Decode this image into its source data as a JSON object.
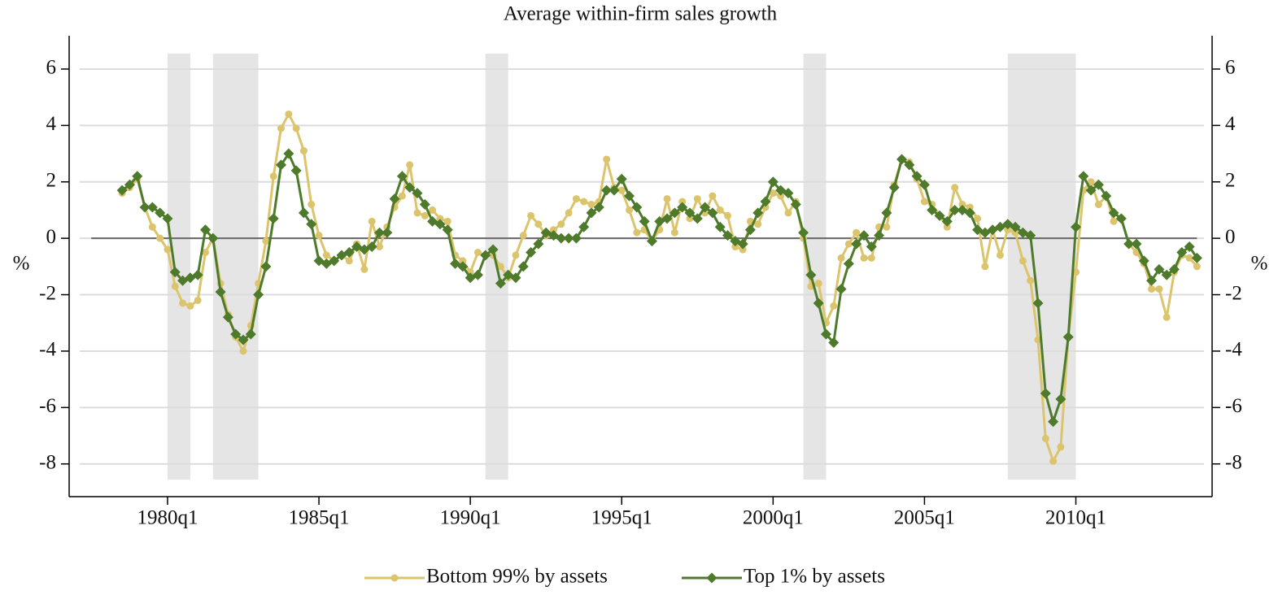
{
  "chart_data": {
    "type": "line",
    "title": "Average within-firm sales growth",
    "y_label": "%",
    "x": [
      "1978q3",
      "1978q4",
      "1979q1",
      "1979q2",
      "1979q3",
      "1979q4",
      "1980q1",
      "1980q2",
      "1980q3",
      "1980q4",
      "1981q1",
      "1981q2",
      "1981q3",
      "1981q4",
      "1982q1",
      "1982q2",
      "1982q3",
      "1982q4",
      "1983q1",
      "1983q2",
      "1983q3",
      "1983q4",
      "1984q1",
      "1984q2",
      "1984q3",
      "1984q4",
      "1985q1",
      "1985q2",
      "1985q3",
      "1985q4",
      "1986q1",
      "1986q2",
      "1986q3",
      "1986q4",
      "1987q1",
      "1987q2",
      "1987q3",
      "1987q4",
      "1988q1",
      "1988q2",
      "1988q3",
      "1988q4",
      "1989q1",
      "1989q2",
      "1989q3",
      "1989q4",
      "1990q1",
      "1990q2",
      "1990q3",
      "1990q4",
      "1991q1",
      "1991q2",
      "1991q3",
      "1991q4",
      "1992q1",
      "1992q2",
      "1992q3",
      "1992q4",
      "1993q1",
      "1993q2",
      "1993q3",
      "1993q4",
      "1994q1",
      "1994q2",
      "1994q3",
      "1994q4",
      "1995q1",
      "1995q2",
      "1995q3",
      "1995q4",
      "1996q1",
      "1996q2",
      "1996q3",
      "1996q4",
      "1997q1",
      "1997q2",
      "1997q3",
      "1997q4",
      "1998q1",
      "1998q2",
      "1998q3",
      "1998q4",
      "1999q1",
      "1999q2",
      "1999q3",
      "1999q4",
      "2000q1",
      "2000q2",
      "2000q3",
      "2000q4",
      "2001q1",
      "2001q2",
      "2001q3",
      "2001q4",
      "2002q1",
      "2002q2",
      "2002q3",
      "2002q4",
      "2003q1",
      "2003q2",
      "2003q3",
      "2003q4",
      "2004q1",
      "2004q2",
      "2004q3",
      "2004q4",
      "2005q1",
      "2005q2",
      "2005q3",
      "2005q4",
      "2006q1",
      "2006q2",
      "2006q3",
      "2006q4",
      "2007q1",
      "2007q2",
      "2007q3",
      "2007q4",
      "2008q1",
      "2008q2",
      "2008q3",
      "2008q4",
      "2009q1",
      "2009q2",
      "2009q3",
      "2009q4",
      "2010q1",
      "2010q2",
      "2010q3",
      "2010q4",
      "2011q1",
      "2011q2",
      "2011q3",
      "2011q4",
      "2012q1",
      "2012q2",
      "2012q3",
      "2012q4",
      "2013q1",
      "2013q2",
      "2013q3",
      "2013q4",
      "2014q1"
    ],
    "series": [
      {
        "name": "Bottom 99% by assets",
        "color": "#dcc46c",
        "marker": "circle",
        "values": [
          1.6,
          1.8,
          2.1,
          1.1,
          0.4,
          0.0,
          -0.4,
          -1.7,
          -2.3,
          -2.4,
          -2.2,
          -0.5,
          0.0,
          -1.6,
          -2.7,
          -3.5,
          -4.0,
          -3.1,
          -1.6,
          -0.1,
          2.2,
          3.9,
          4.4,
          3.9,
          3.1,
          1.2,
          0.1,
          -0.6,
          -0.8,
          -0.6,
          -0.8,
          -0.2,
          -1.1,
          0.6,
          -0.3,
          0.4,
          1.1,
          1.5,
          2.6,
          0.9,
          0.8,
          1.0,
          0.7,
          0.6,
          -0.6,
          -0.8,
          -1.2,
          -0.5,
          -0.6,
          -0.6,
          -1.0,
          -1.4,
          -0.6,
          0.1,
          0.8,
          0.5,
          0.1,
          0.3,
          0.5,
          0.9,
          1.4,
          1.3,
          1.2,
          1.3,
          2.8,
          1.8,
          1.7,
          1.0,
          0.2,
          0.3,
          -0.1,
          0.3,
          1.4,
          0.2,
          1.3,
          0.7,
          1.4,
          0.9,
          1.5,
          1.0,
          0.8,
          -0.3,
          -0.4,
          0.6,
          0.5,
          1.1,
          1.6,
          1.5,
          0.9,
          1.3,
          0.0,
          -1.7,
          -1.6,
          -3.0,
          -2.4,
          -0.7,
          -0.2,
          0.2,
          -0.7,
          -0.7,
          0.4,
          0.4,
          1.9,
          2.8,
          2.7,
          2.1,
          1.3,
          1.2,
          0.8,
          0.4,
          1.8,
          1.2,
          1.1,
          0.7,
          -1.0,
          0.3,
          -0.6,
          0.3,
          0.2,
          -0.8,
          -1.5,
          -3.6,
          -7.1,
          -7.9,
          -7.4,
          -3.5,
          -1.2,
          1.7,
          2.0,
          1.2,
          1.5,
          0.6,
          0.7,
          -0.2,
          -0.5,
          -0.9,
          -1.8,
          -1.8,
          -2.8,
          -1.2,
          -0.6,
          -0.7,
          -1.0
        ]
      },
      {
        "name": "Top 1% by assets",
        "color": "#4e7a2b",
        "marker": "diamond",
        "values": [
          1.7,
          1.9,
          2.2,
          1.1,
          1.1,
          0.9,
          0.7,
          -1.2,
          -1.5,
          -1.4,
          -1.3,
          0.3,
          0.0,
          -1.9,
          -2.8,
          -3.4,
          -3.6,
          -3.4,
          -2.0,
          -1.0,
          0.7,
          2.6,
          3.0,
          2.4,
          0.9,
          0.5,
          -0.8,
          -0.9,
          -0.8,
          -0.6,
          -0.5,
          -0.3,
          -0.4,
          -0.3,
          0.2,
          0.2,
          1.4,
          2.2,
          1.8,
          1.6,
          1.2,
          0.6,
          0.5,
          0.3,
          -0.9,
          -1.0,
          -1.4,
          -1.3,
          -0.6,
          -0.4,
          -1.6,
          -1.3,
          -1.4,
          -1.0,
          -0.5,
          -0.2,
          0.2,
          0.1,
          0.0,
          0.0,
          0.0,
          0.4,
          0.9,
          1.1,
          1.7,
          1.7,
          2.1,
          1.5,
          1.1,
          0.6,
          -0.1,
          0.6,
          0.7,
          0.9,
          1.1,
          0.9,
          0.7,
          1.1,
          0.9,
          0.4,
          0.1,
          -0.1,
          -0.2,
          0.3,
          0.9,
          1.3,
          2.0,
          1.7,
          1.6,
          1.2,
          0.2,
          -1.3,
          -2.3,
          -3.4,
          -3.7,
          -1.8,
          -0.9,
          -0.2,
          0.1,
          -0.3,
          0.1,
          0.9,
          1.8,
          2.8,
          2.6,
          2.2,
          1.9,
          1.0,
          0.8,
          0.6,
          1.0,
          1.0,
          0.9,
          0.3,
          0.2,
          0.3,
          0.4,
          0.5,
          0.4,
          0.2,
          0.1,
          -2.3,
          -5.5,
          -6.5,
          -5.7,
          -3.5,
          0.4,
          2.2,
          1.7,
          1.9,
          1.5,
          0.9,
          0.7,
          -0.2,
          -0.2,
          -0.8,
          -1.5,
          -1.1,
          -1.3,
          -1.1,
          -0.5,
          -0.3,
          -0.7
        ]
      }
    ],
    "xlim": [
      "1976q4",
      "2014q3"
    ],
    "xticks": [
      "1980q1",
      "1985q1",
      "1990q1",
      "1995q1",
      "2000q1",
      "2005q1",
      "2010q1"
    ],
    "ylim": [
      -9.16,
      7.18
    ],
    "yticks": [
      -8,
      -6,
      -4,
      -2,
      0,
      2,
      4,
      6
    ],
    "y2lim": [
      -9.16,
      7.18
    ],
    "y2ticks": [
      -8,
      -6,
      -4,
      -2,
      0,
      2,
      4,
      6
    ],
    "reference_line": 0,
    "shaded_periods": [
      [
        "1980q1",
        "1980q4"
      ],
      [
        "1981q3",
        "1983q1"
      ],
      [
        "1990q3",
        "1991q2"
      ],
      [
        "2001q1",
        "2001q4"
      ],
      [
        "2007q4",
        "2010q1"
      ]
    ],
    "shade_color": "#e5e5e5",
    "grid": true,
    "legend": "bottom"
  }
}
